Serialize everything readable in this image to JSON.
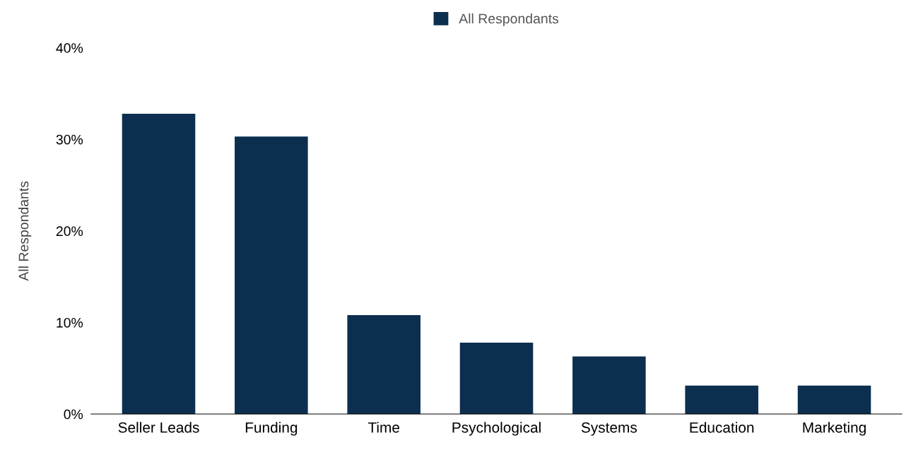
{
  "chart_data": {
    "type": "bar",
    "categories": [
      "Seller Leads",
      "Funding",
      "Time",
      "Psychological",
      "Systems",
      "Education",
      "Marketing"
    ],
    "series": [
      {
        "name": "All Respondants",
        "color": "#0d2f4f",
        "values": [
          32.8,
          30.3,
          10.8,
          7.8,
          6.3,
          3.1,
          3.1
        ]
      }
    ],
    "ylabel": "All Respondants",
    "ylim": [
      0,
      40
    ],
    "yticks": [
      {
        "value": 0,
        "label": "0%"
      },
      {
        "value": 10,
        "label": "10%"
      },
      {
        "value": 20,
        "label": "20%"
      },
      {
        "value": 30,
        "label": "30%"
      },
      {
        "value": 40,
        "label": "40%"
      }
    ],
    "grid": false,
    "legend": "top"
  }
}
